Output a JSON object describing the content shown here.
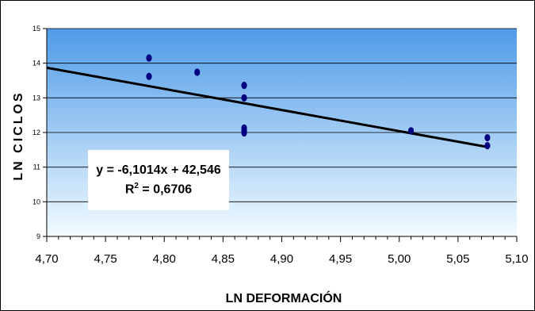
{
  "chart_data": {
    "type": "scatter",
    "xlabel": "LN DEFORMACIÓN",
    "ylabel": "LN CICLOS",
    "xlim": [
      4.7,
      5.1
    ],
    "ylim": [
      9,
      15
    ],
    "x_ticks": [
      "4,70",
      "4,75",
      "4,80",
      "4,85",
      "4,90",
      "4,95",
      "5,00",
      "5,05",
      "5,10"
    ],
    "y_ticks": [
      "9",
      "10",
      "11",
      "12",
      "13",
      "14",
      "15"
    ],
    "grid": "horizontal",
    "background": "gradient light-blue",
    "marker_color": "#000080",
    "points": [
      {
        "x": 4.787,
        "y": 14.15
      },
      {
        "x": 4.787,
        "y": 13.62
      },
      {
        "x": 4.828,
        "y": 13.74
      },
      {
        "x": 4.868,
        "y": 13.36
      },
      {
        "x": 4.868,
        "y": 13.0
      },
      {
        "x": 4.868,
        "y": 12.13
      },
      {
        "x": 4.868,
        "y": 12.05
      },
      {
        "x": 4.868,
        "y": 11.99
      },
      {
        "x": 5.01,
        "y": 12.05
      },
      {
        "x": 5.075,
        "y": 11.85
      },
      {
        "x": 5.075,
        "y": 11.62
      }
    ],
    "trendline": {
      "slope": -6.1014,
      "intercept": 42.546,
      "x_range": [
        4.7,
        5.075
      ],
      "color": "#000000"
    },
    "equation_text": "y = -6,1014x + 42,546",
    "r2_prefix": "R",
    "r2_exp": "2",
    "r2_value": " = 0,6706"
  }
}
